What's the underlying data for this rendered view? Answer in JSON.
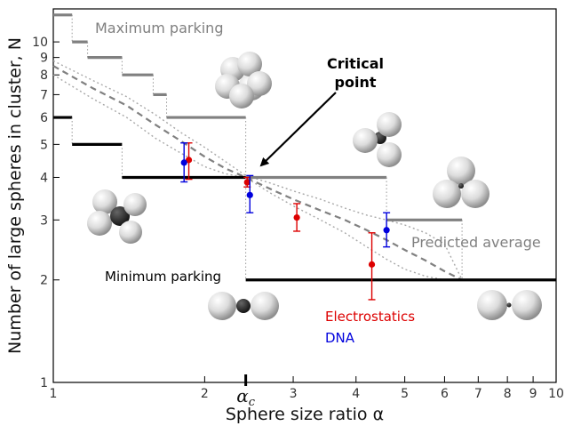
{
  "chart_data": {
    "type": "line",
    "xlabel": "Sphere size ratio α",
    "ylabel": "Number of large spheres in cluster, N",
    "x_scale": "log",
    "y_scale": "log",
    "xlim": [
      1,
      10
    ],
    "ylim": [
      1,
      12.5
    ],
    "x_ticks": [
      {
        "value": 1,
        "label": "1"
      },
      {
        "value": 2,
        "label": "2"
      },
      {
        "value": 3,
        "label": "3"
      },
      {
        "value": 4,
        "label": "4"
      },
      {
        "value": 5,
        "label": "5"
      },
      {
        "value": 6,
        "label": "6"
      },
      {
        "value": 7,
        "label": "7"
      },
      {
        "value": 8,
        "label": "8"
      },
      {
        "value": 9,
        "label": "9"
      },
      {
        "value": 10,
        "label": "10"
      }
    ],
    "y_ticks": [
      {
        "value": 1,
        "label": "1"
      },
      {
        "value": 2,
        "label": "2"
      },
      {
        "value": 3,
        "label": "3"
      },
      {
        "value": 4,
        "label": "4"
      },
      {
        "value": 5,
        "label": "5"
      },
      {
        "value": 6,
        "label": "6"
      },
      {
        "value": 7,
        "label": "7"
      },
      {
        "value": 8,
        "label": "8"
      },
      {
        "value": 9,
        "label": "9"
      },
      {
        "value": 10,
        "label": "10"
      }
    ],
    "critical_tick": {
      "value": 2.414,
      "label": "αc"
    },
    "max_parking": [
      {
        "x1": 1.0,
        "x2": 1.09,
        "y": 12
      },
      {
        "x1": 1.09,
        "x2": 1.17,
        "y": 10
      },
      {
        "x1": 1.17,
        "x2": 1.37,
        "y": 9
      },
      {
        "x1": 1.37,
        "x2": 1.58,
        "y": 8
      },
      {
        "x1": 1.58,
        "x2": 1.68,
        "y": 7
      },
      {
        "x1": 1.68,
        "x2": 2.414,
        "y": 6
      },
      {
        "x1": 2.414,
        "x2": 4.6,
        "y": 4
      },
      {
        "x1": 4.6,
        "x2": 6.5,
        "y": 3
      }
    ],
    "max_color": "#808080",
    "min_parking": [
      {
        "x1": 1.0,
        "x2": 1.09,
        "y": 6
      },
      {
        "x1": 1.09,
        "x2": 1.37,
        "y": 5
      },
      {
        "x1": 1.37,
        "x2": 2.414,
        "y": 4
      },
      {
        "x1": 2.414,
        "x2": 10,
        "y": 2
      }
    ],
    "min_color": "#000000",
    "predicted_average": {
      "x": [
        1.0,
        1.2,
        1.4,
        1.6,
        1.8,
        2.0,
        2.2,
        2.414,
        2.7,
        3.0,
        3.4,
        3.8,
        4.2,
        4.6,
        5.0,
        5.5,
        6.0,
        6.5
      ],
      "y": [
        8.5,
        7.3,
        6.5,
        5.7,
        5.1,
        4.6,
        4.25,
        4.0,
        3.7,
        3.45,
        3.2,
        3.0,
        2.8,
        2.62,
        2.45,
        2.28,
        2.12,
        2.0
      ],
      "upper": [
        8.8,
        7.7,
        6.9,
        6.1,
        5.4,
        4.9,
        4.45,
        4.05,
        3.85,
        3.65,
        3.45,
        3.25,
        3.1,
        3.0,
        2.9,
        2.75,
        2.55,
        2.0
      ],
      "lower": [
        8.0,
        6.8,
        6.0,
        5.2,
        4.7,
        4.3,
        4.1,
        4.0,
        3.6,
        3.3,
        3.0,
        2.75,
        2.5,
        2.3,
        2.15,
        2.05,
        2.0,
        2.0
      ],
      "color": "#808080"
    },
    "series": [
      {
        "name": "Electrostatics",
        "color": "#dd0000",
        "points": [
          {
            "x": 1.86,
            "y": 4.5,
            "ylo": 3.95,
            "yhi": 5.05
          },
          {
            "x": 2.43,
            "y": 3.87,
            "ylo": 3.75,
            "yhi": 4.0
          },
          {
            "x": 3.05,
            "y": 3.05,
            "ylo": 2.78,
            "yhi": 3.35
          },
          {
            "x": 4.3,
            "y": 2.22,
            "ylo": 1.75,
            "yhi": 2.75
          }
        ]
      },
      {
        "name": "DNA",
        "color": "#0000dd",
        "points": [
          {
            "x": 1.82,
            "y": 4.42,
            "ylo": 3.88,
            "yhi": 5.05
          },
          {
            "x": 2.46,
            "y": 3.55,
            "ylo": 3.15,
            "yhi": 4.05
          },
          {
            "x": 4.6,
            "y": 2.8,
            "ylo": 2.5,
            "yhi": 3.15
          }
        ]
      }
    ],
    "annotations": {
      "maximum_parking": "Maximum parking",
      "minimum_parking": "Minimum parking",
      "critical_point_line1": "Critical",
      "critical_point_line2": "point",
      "predicted_average": "Predicted average",
      "electrostatics": "Electrostatics",
      "dna": "DNA"
    }
  }
}
